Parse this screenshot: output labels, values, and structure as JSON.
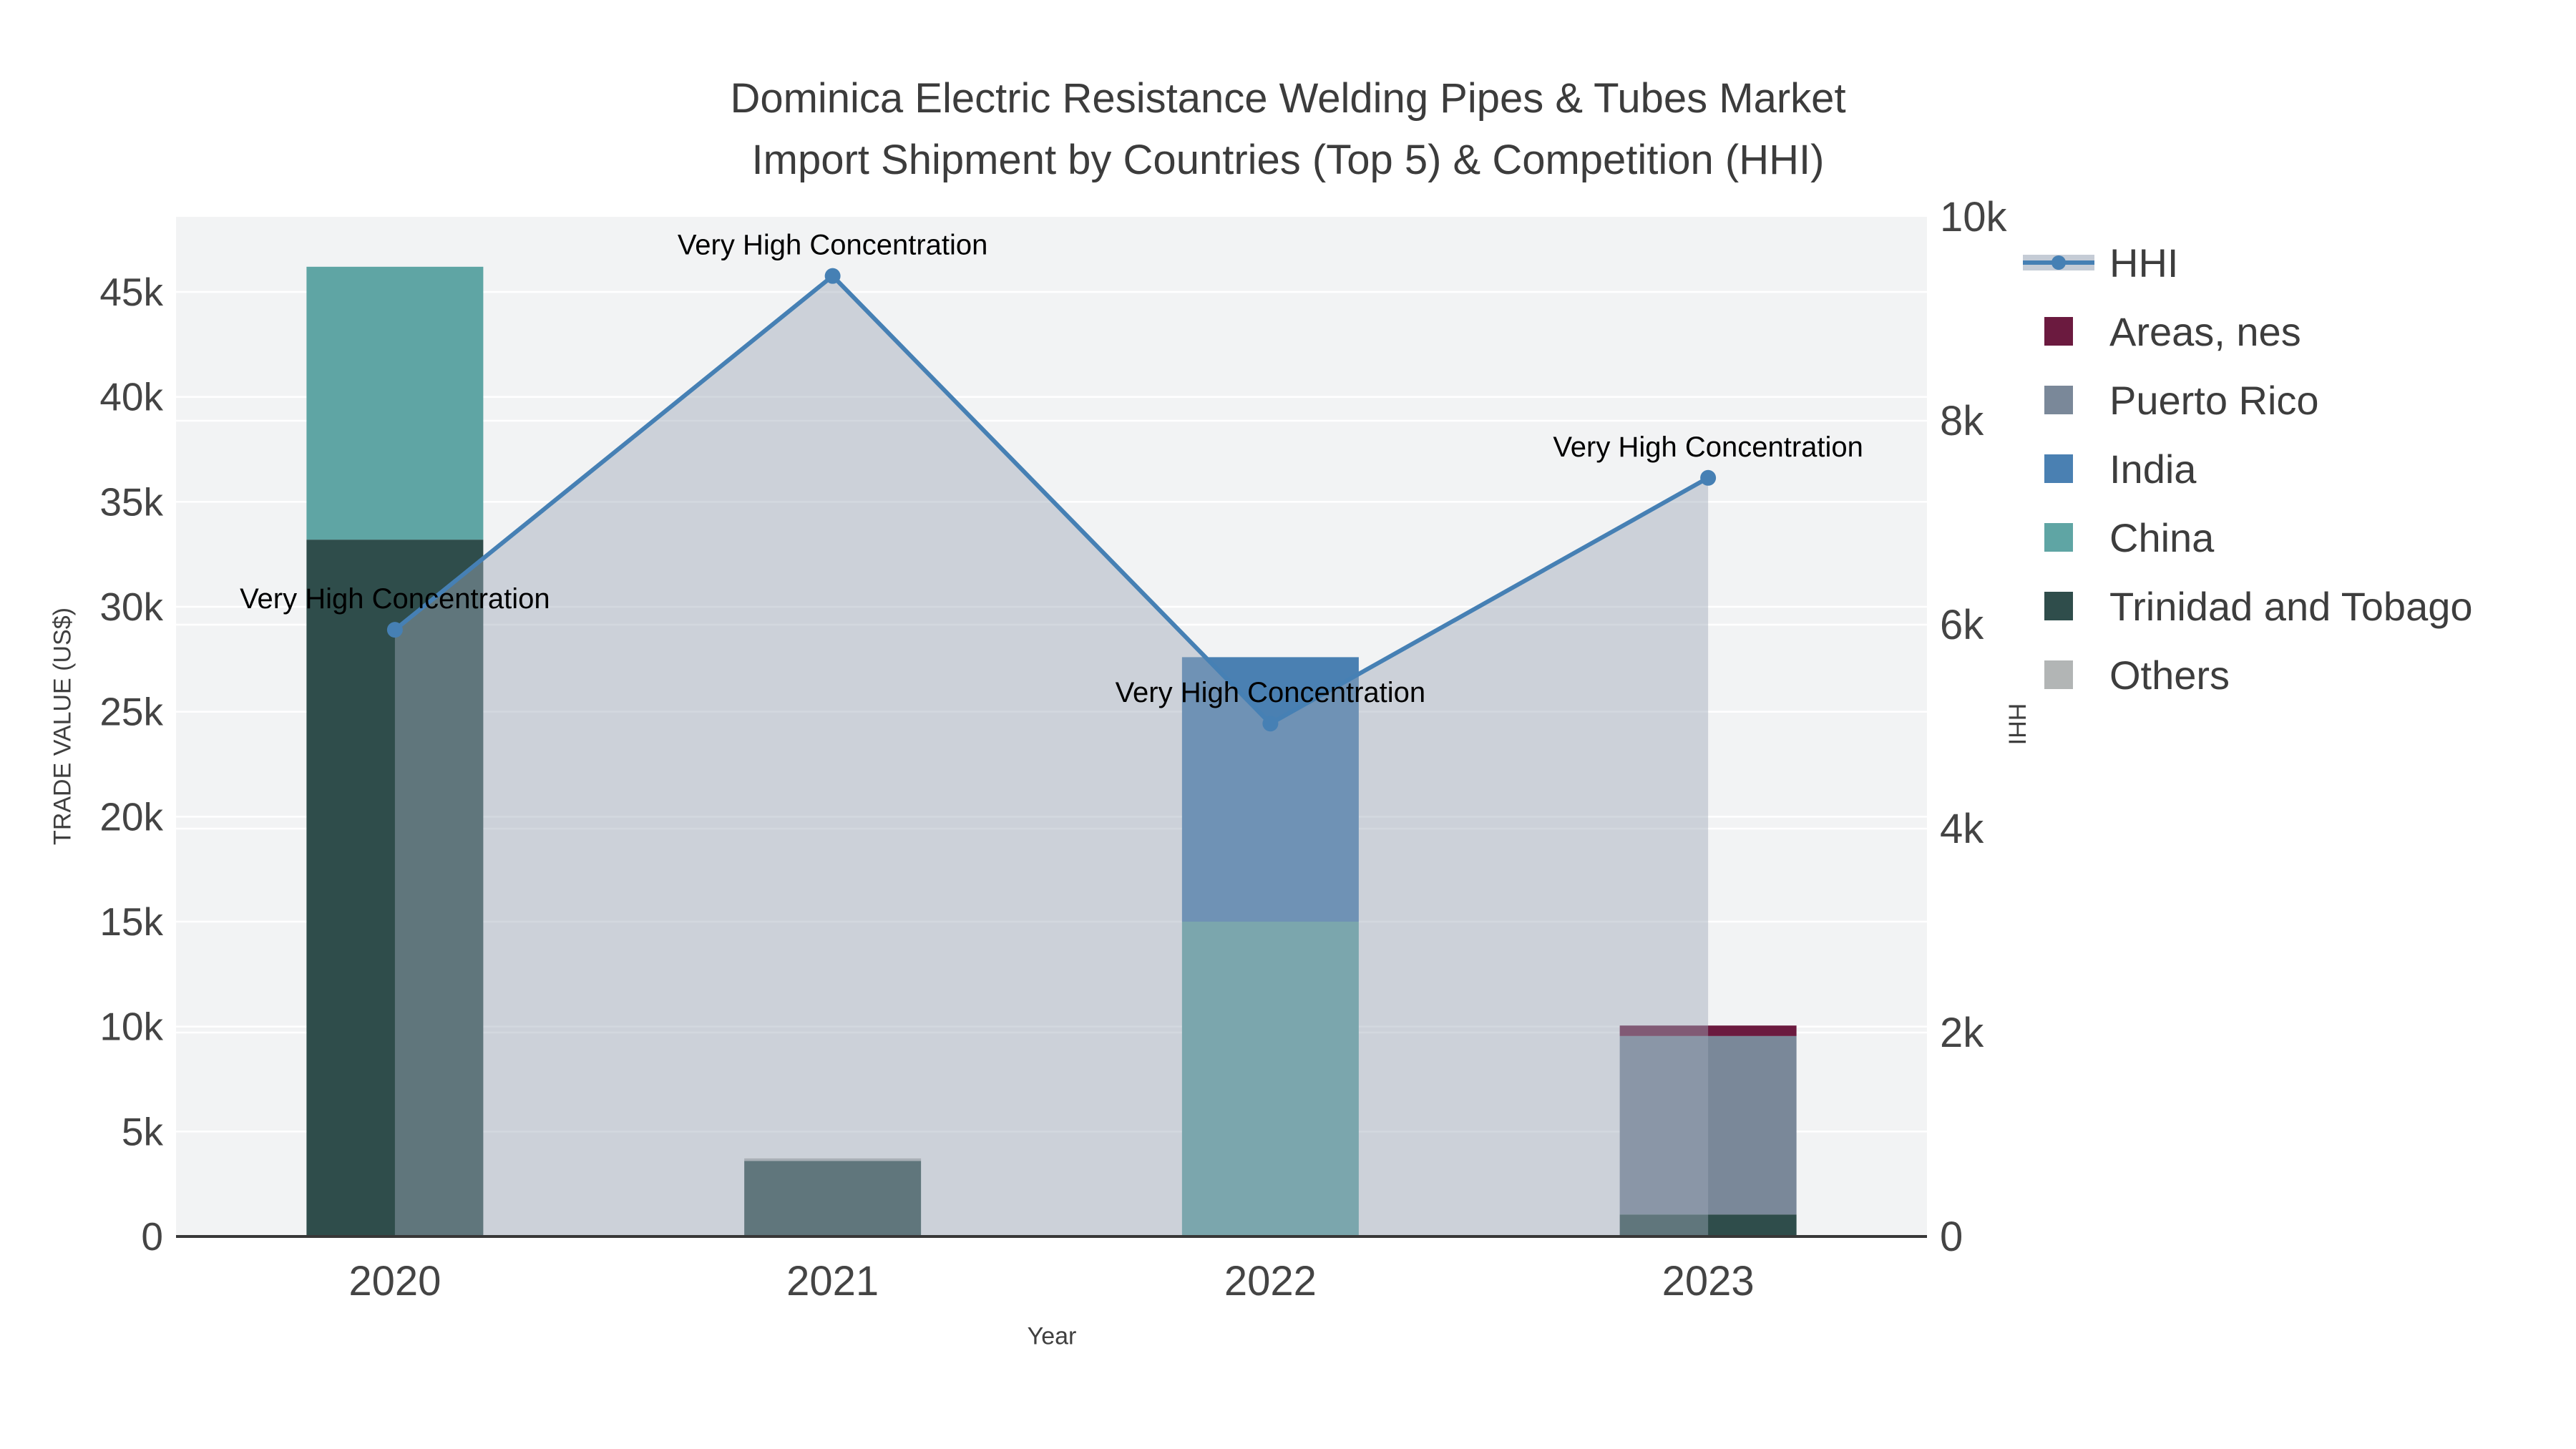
{
  "title": {
    "line1": "Dominica Electric Resistance Welding Pipes & Tubes Market",
    "line2": "Import Shipment by Countries (Top 5) & Competition (HHI)"
  },
  "legend": {
    "items": [
      {
        "label": "HHI",
        "type": "line",
        "color": "#4680b4",
        "band_color": "#c5ccd6"
      },
      {
        "label": "Areas, nes",
        "type": "square",
        "color": "#6b1a3f"
      },
      {
        "label": "Puerto Rico",
        "type": "square",
        "color": "#7a8899"
      },
      {
        "label": "India",
        "type": "square",
        "color": "#4a80b2"
      },
      {
        "label": "China",
        "type": "square",
        "color": "#5fa5a4"
      },
      {
        "label": "Trinidad and Tobago",
        "type": "square",
        "color": "#2f4d4b"
      },
      {
        "label": "Others",
        "type": "square",
        "color": "#b2b5b5"
      }
    ]
  },
  "chart_data": {
    "type": "bar",
    "subtype": "stacked-bars-with-line",
    "title": "Dominica Electric Resistance Welding Pipes & Tubes Market Import Shipment by Countries (Top 5) & Competition (HHI)",
    "categories": [
      "2020",
      "2021",
      "2022",
      "2023"
    ],
    "series": [
      {
        "name": "Trinidad and Tobago",
        "color": "#2f4d4b",
        "values": [
          33200,
          3600,
          0,
          1050
        ]
      },
      {
        "name": "China",
        "color": "#5fa5a4",
        "values": [
          13000,
          0,
          15000,
          0
        ]
      },
      {
        "name": "India",
        "color": "#4a80b2",
        "values": [
          0,
          0,
          12600,
          0
        ]
      },
      {
        "name": "Puerto Rico",
        "color": "#7a8899",
        "values": [
          0,
          0,
          0,
          8500
        ]
      },
      {
        "name": "Areas, nes",
        "color": "#6b1a3f",
        "values": [
          0,
          0,
          0,
          500
        ]
      },
      {
        "name": "Others",
        "color": "#b2b5b5",
        "values": [
          0,
          120,
          0,
          0
        ]
      }
    ],
    "line_series": {
      "name": "HHI",
      "color": "#4680b4",
      "area_fill": "rgba(158,168,185,0.45)",
      "values": [
        5950,
        9420,
        5030,
        7440
      ]
    },
    "annotations": [
      {
        "x": "2020",
        "text": "Very High Concentration"
      },
      {
        "x": "2021",
        "text": "Very High Concentration"
      },
      {
        "x": "2022",
        "text": "Very High Concentration"
      },
      {
        "x": "2023",
        "text": "Very High Concentration"
      }
    ],
    "xlabel": "Year",
    "ylabel": "TRADE VALUE (US$)",
    "y2label": "HHI",
    "y_left": {
      "ticks": [
        {
          "label": "0",
          "value": 0
        },
        {
          "label": "5k",
          "value": 5000
        },
        {
          "label": "10k",
          "value": 10000
        },
        {
          "label": "15k",
          "value": 15000
        },
        {
          "label": "20k",
          "value": 20000
        },
        {
          "label": "25k",
          "value": 25000
        },
        {
          "label": "30k",
          "value": 30000
        },
        {
          "label": "35k",
          "value": 35000
        },
        {
          "label": "40k",
          "value": 40000
        },
        {
          "label": "45k",
          "value": 45000
        }
      ],
      "max": 48580
    },
    "y_right": {
      "ticks": [
        {
          "label": "0",
          "value": 0
        },
        {
          "label": "2k",
          "value": 2000
        },
        {
          "label": "4k",
          "value": 4000
        },
        {
          "label": "6k",
          "value": 6000
        },
        {
          "label": "8k",
          "value": 8000
        },
        {
          "label": "10k",
          "value": 10000
        }
      ],
      "max": 10000
    },
    "grid": true,
    "legend_position": "top-right",
    "colors": {
      "plot_background": "#f2f3f4",
      "gridline": "#ffffff",
      "axis_line": "#383838",
      "tick_text": "#444444",
      "title_text": "#3c3c3c",
      "annotation_text": "#000000"
    }
  }
}
